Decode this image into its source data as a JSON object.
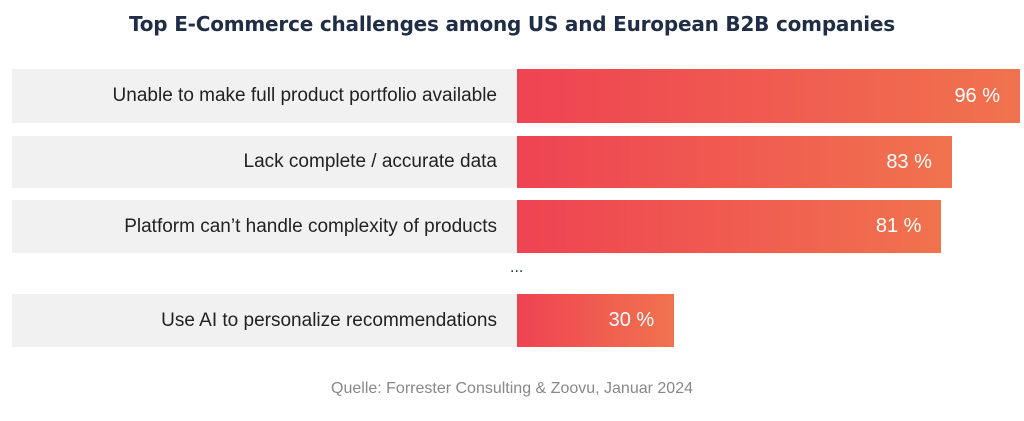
{
  "chart_data": {
    "type": "bar",
    "orientation": "horizontal",
    "title": "Top E-Commerce challenges among US and European B2B companies",
    "categories": [
      "Unable to make full product portfolio available",
      "Lack complete / accurate data",
      "Platform can’t handle complexity of products",
      "Use AI to personalize recommendations"
    ],
    "values": [
      96,
      83,
      81,
      30
    ],
    "value_labels": [
      "96 %",
      "83 %",
      "81 %",
      "30 %"
    ],
    "unit": "%",
    "xlim": [
      0,
      100
    ],
    "gap_marker": "...",
    "grid": false,
    "colors": {
      "bar_start": "#ef4352",
      "bar_end": "#f0734e",
      "label_bg": "#f1f1f1"
    },
    "source": "Quelle: Forrester Consulting & Zoovu, Januar 2024"
  }
}
